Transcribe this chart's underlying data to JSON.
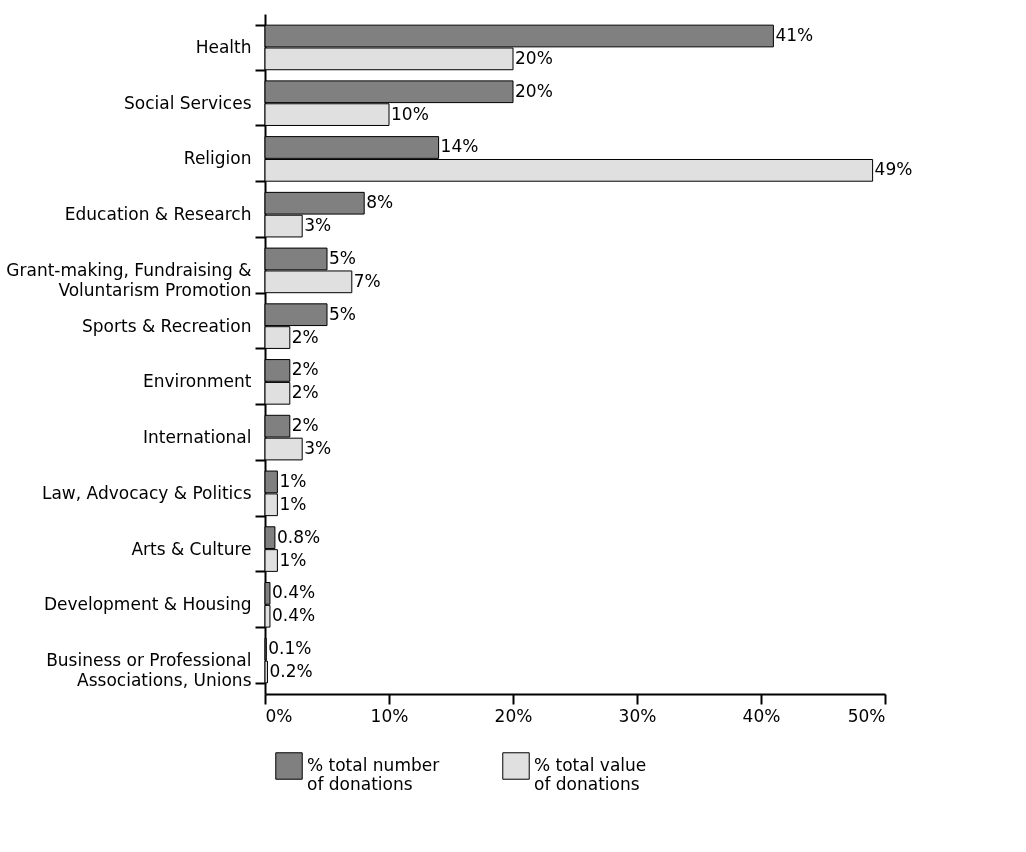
{
  "chart_data": {
    "type": "bar",
    "orientation": "horizontal",
    "categories": [
      "Health",
      "Social Services",
      "Religion",
      "Education & Research",
      "Grant-making, Fundraising &\nVoluntarism Promotion",
      "Sports & Recreation",
      "Environment",
      "International",
      "Law, Advocacy & Politics",
      "Arts & Culture",
      "Development & Housing",
      "Business or Professional\nAssociations, Unions"
    ],
    "series": [
      {
        "name": "% total number\nof donations",
        "color": "#808080",
        "values": [
          41,
          20,
          14,
          8,
          5,
          5,
          2,
          2,
          1,
          0.8,
          0.4,
          0.1
        ],
        "value_labels": [
          "41%",
          "20%",
          "14%",
          "8%",
          "5%",
          "5%",
          "2%",
          "2%",
          "1%",
          "0.8%",
          "0.4%",
          "0.1%"
        ]
      },
      {
        "name": "% total value\nof donations",
        "color": "#e0e0e0",
        "values": [
          20,
          10,
          49,
          3,
          7,
          2,
          2,
          3,
          1,
          1,
          0.4,
          0.2
        ],
        "value_labels": [
          "20%",
          "10%",
          "49%",
          "3%",
          "7%",
          "2%",
          "2%",
          "3%",
          "1%",
          "1%",
          "0.4%",
          "0.2%"
        ]
      }
    ],
    "xlim": [
      0,
      50
    ],
    "xticks": [
      {
        "value": 0,
        "label": "0%"
      },
      {
        "value": 10,
        "label": "10%"
      },
      {
        "value": 20,
        "label": "20%"
      },
      {
        "value": 30,
        "label": "30%"
      },
      {
        "value": 40,
        "label": "40%"
      },
      {
        "value": 50,
        "label": "50%"
      }
    ],
    "grid": false,
    "legend": "bottom"
  }
}
